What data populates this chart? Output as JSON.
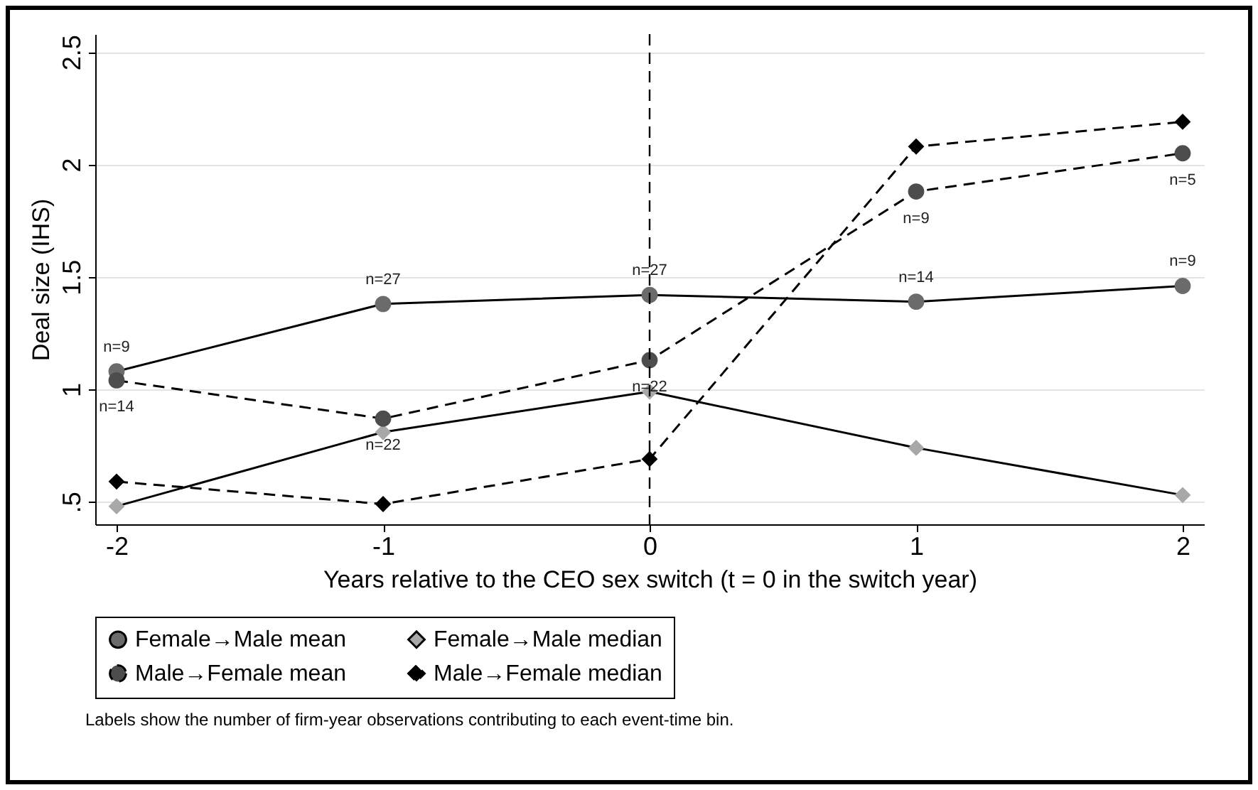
{
  "chart_data": {
    "type": "line",
    "xlabel": "Years relative to the CEO sex switch (t = 0 in the switch year)",
    "ylabel": "Deal size (IHS)",
    "x": [
      -2,
      -1,
      0,
      1,
      2
    ],
    "series": [
      {
        "name": "Female→Male mean",
        "color": "#6b6b6b",
        "marker": "circle",
        "line_style": "solid",
        "values": [
          1.08,
          1.38,
          1.42,
          1.39,
          1.46
        ]
      },
      {
        "name": "Female→Male median",
        "color": "#a8a8a8",
        "marker": "diamond",
        "line_style": "solid",
        "values": [
          0.48,
          0.81,
          0.99,
          0.74,
          0.53
        ]
      },
      {
        "name": "Male→Female mean",
        "color": "#4d4d4d",
        "marker": "circle",
        "line_style": "dashed",
        "values": [
          1.04,
          0.87,
          1.13,
          1.88,
          2.05
        ]
      },
      {
        "name": "Male→Female median",
        "color": "#000000",
        "marker": "diamond",
        "line_style": "dashed",
        "values": [
          0.59,
          0.49,
          0.69,
          2.08,
          2.19
        ]
      }
    ],
    "xlim": [
      -2.08,
      2.08
    ],
    "xticks": [
      -2,
      -1,
      0,
      1,
      2
    ],
    "ylim": [
      0.4,
      2.58
    ],
    "yticks": [
      {
        "value": 0.5,
        "label": ".5"
      },
      1,
      1.5,
      2,
      2.5
    ],
    "grid": "y",
    "legend": "bottom",
    "ref_lines": [
      {
        "axis": "x",
        "value": 0,
        "line_style": "dashed"
      }
    ],
    "annotations": [
      {
        "text": "n=9",
        "x": -2,
        "y": 1.08
      },
      {
        "text": "n=27",
        "x": -1,
        "y": 1.38
      },
      {
        "text": "n=27",
        "x": 0,
        "y": 1.42
      },
      {
        "text": "n=14",
        "x": 1,
        "y": 1.39
      },
      {
        "text": "n=9",
        "x": 2,
        "y": 1.46
      },
      {
        "text": "n=14",
        "x": -2,
        "y": 1.04
      },
      {
        "text": "n=22",
        "x": -1,
        "y": 0.87
      },
      {
        "text": "n=22",
        "x": 0,
        "y": 1.13
      },
      {
        "text": "n=9",
        "x": 1,
        "y": 1.88
      },
      {
        "text": "n=5",
        "x": 2,
        "y": 2.05
      },
      "Labels show the number of firm-year observations contributing to each event-time bin."
    ]
  }
}
